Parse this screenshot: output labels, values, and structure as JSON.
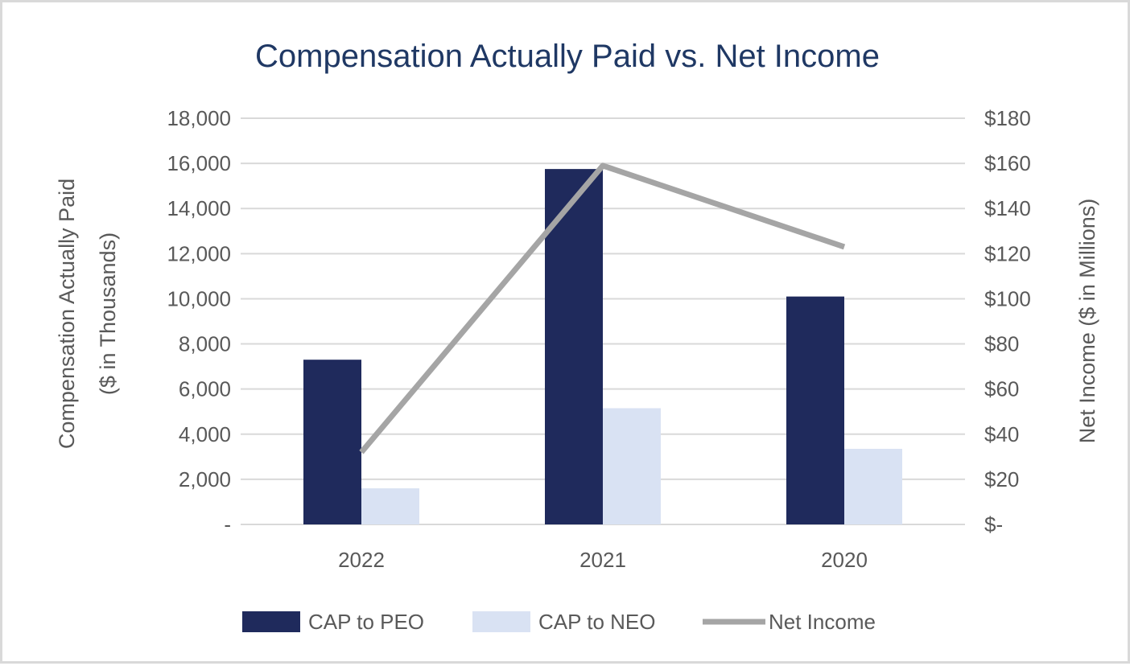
{
  "chart_data": {
    "type": "bar",
    "title": "Compensation Actually Paid vs. Net Income",
    "categories": [
      "2022",
      "2021",
      "2020"
    ],
    "y_left": {
      "label_line1": "Compensation Actually Paid",
      "label_line2": "($ in Thousands)",
      "ylim": [
        0,
        18000
      ],
      "ticks": [
        0,
        2000,
        4000,
        6000,
        8000,
        10000,
        12000,
        14000,
        16000,
        18000
      ],
      "tick_labels": [
        "-",
        "2,000",
        "4,000",
        "6,000",
        "8,000",
        "10,000",
        "12,000",
        "14,000",
        "16,000",
        "18,000"
      ]
    },
    "y_right": {
      "label": "Net Income ($ in Millions)",
      "ylim": [
        0,
        180
      ],
      "ticks": [
        0,
        20,
        40,
        60,
        80,
        100,
        120,
        140,
        160,
        180
      ],
      "tick_labels": [
        "$-",
        "$20",
        "$40",
        "$60",
        "$80",
        "$100",
        "$120",
        "$140",
        "$160",
        "$180"
      ]
    },
    "series": [
      {
        "name": "CAP to PEO",
        "type": "bar",
        "axis": "left",
        "color": "#1f2a5c",
        "values": [
          7300,
          15750,
          10100
        ]
      },
      {
        "name": "CAP to NEO",
        "type": "bar",
        "axis": "left",
        "color": "#d9e2f3",
        "values": [
          1600,
          5150,
          3350
        ]
      },
      {
        "name": "Net Income",
        "type": "line",
        "axis": "right",
        "color": "#a5a5a5",
        "values": [
          32,
          159,
          123
        ]
      }
    ],
    "grid": true,
    "legend": "bottom",
    "colors": {
      "title": "#1f3864",
      "axis_text": "#595959",
      "gridline": "#d9d9d9"
    }
  }
}
